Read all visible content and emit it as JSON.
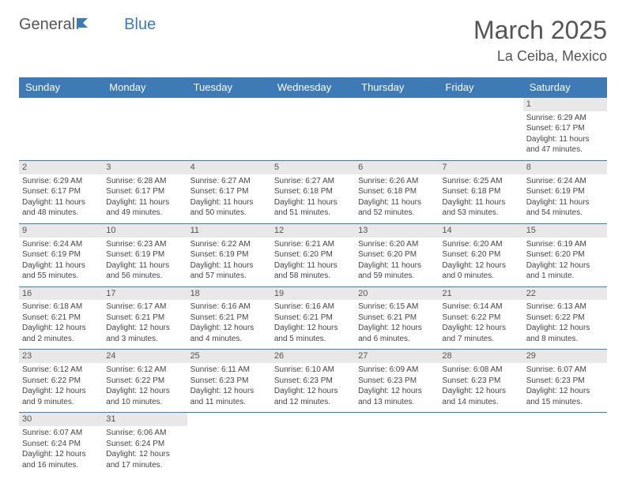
{
  "logo": {
    "general": "General",
    "blue": "Blue"
  },
  "title": {
    "month": "March 2025",
    "location": "La Ceiba, Mexico"
  },
  "days_of_week": [
    "Sunday",
    "Monday",
    "Tuesday",
    "Wednesday",
    "Thursday",
    "Friday",
    "Saturday"
  ],
  "colors": {
    "header_bg": "#3e7ab5",
    "header_text": "#ffffff",
    "daynum_bg": "#e8e8e8",
    "border": "#3e7ab5",
    "text": "#444444"
  },
  "weeks": [
    [
      null,
      null,
      null,
      null,
      null,
      null,
      {
        "n": "1",
        "sunrise": "Sunrise: 6:29 AM",
        "sunset": "Sunset: 6:17 PM",
        "daylight": "Daylight: 11 hours and 47 minutes."
      }
    ],
    [
      {
        "n": "2",
        "sunrise": "Sunrise: 6:29 AM",
        "sunset": "Sunset: 6:17 PM",
        "daylight": "Daylight: 11 hours and 48 minutes."
      },
      {
        "n": "3",
        "sunrise": "Sunrise: 6:28 AM",
        "sunset": "Sunset: 6:17 PM",
        "daylight": "Daylight: 11 hours and 49 minutes."
      },
      {
        "n": "4",
        "sunrise": "Sunrise: 6:27 AM",
        "sunset": "Sunset: 6:17 PM",
        "daylight": "Daylight: 11 hours and 50 minutes."
      },
      {
        "n": "5",
        "sunrise": "Sunrise: 6:27 AM",
        "sunset": "Sunset: 6:18 PM",
        "daylight": "Daylight: 11 hours and 51 minutes."
      },
      {
        "n": "6",
        "sunrise": "Sunrise: 6:26 AM",
        "sunset": "Sunset: 6:18 PM",
        "daylight": "Daylight: 11 hours and 52 minutes."
      },
      {
        "n": "7",
        "sunrise": "Sunrise: 6:25 AM",
        "sunset": "Sunset: 6:18 PM",
        "daylight": "Daylight: 11 hours and 53 minutes."
      },
      {
        "n": "8",
        "sunrise": "Sunrise: 6:24 AM",
        "sunset": "Sunset: 6:19 PM",
        "daylight": "Daylight: 11 hours and 54 minutes."
      }
    ],
    [
      {
        "n": "9",
        "sunrise": "Sunrise: 6:24 AM",
        "sunset": "Sunset: 6:19 PM",
        "daylight": "Daylight: 11 hours and 55 minutes."
      },
      {
        "n": "10",
        "sunrise": "Sunrise: 6:23 AM",
        "sunset": "Sunset: 6:19 PM",
        "daylight": "Daylight: 11 hours and 56 minutes."
      },
      {
        "n": "11",
        "sunrise": "Sunrise: 6:22 AM",
        "sunset": "Sunset: 6:19 PM",
        "daylight": "Daylight: 11 hours and 57 minutes."
      },
      {
        "n": "12",
        "sunrise": "Sunrise: 6:21 AM",
        "sunset": "Sunset: 6:20 PM",
        "daylight": "Daylight: 11 hours and 58 minutes."
      },
      {
        "n": "13",
        "sunrise": "Sunrise: 6:20 AM",
        "sunset": "Sunset: 6:20 PM",
        "daylight": "Daylight: 11 hours and 59 minutes."
      },
      {
        "n": "14",
        "sunrise": "Sunrise: 6:20 AM",
        "sunset": "Sunset: 6:20 PM",
        "daylight": "Daylight: 12 hours and 0 minutes."
      },
      {
        "n": "15",
        "sunrise": "Sunrise: 6:19 AM",
        "sunset": "Sunset: 6:20 PM",
        "daylight": "Daylight: 12 hours and 1 minute."
      }
    ],
    [
      {
        "n": "16",
        "sunrise": "Sunrise: 6:18 AM",
        "sunset": "Sunset: 6:21 PM",
        "daylight": "Daylight: 12 hours and 2 minutes."
      },
      {
        "n": "17",
        "sunrise": "Sunrise: 6:17 AM",
        "sunset": "Sunset: 6:21 PM",
        "daylight": "Daylight: 12 hours and 3 minutes."
      },
      {
        "n": "18",
        "sunrise": "Sunrise: 6:16 AM",
        "sunset": "Sunset: 6:21 PM",
        "daylight": "Daylight: 12 hours and 4 minutes."
      },
      {
        "n": "19",
        "sunrise": "Sunrise: 6:16 AM",
        "sunset": "Sunset: 6:21 PM",
        "daylight": "Daylight: 12 hours and 5 minutes."
      },
      {
        "n": "20",
        "sunrise": "Sunrise: 6:15 AM",
        "sunset": "Sunset: 6:21 PM",
        "daylight": "Daylight: 12 hours and 6 minutes."
      },
      {
        "n": "21",
        "sunrise": "Sunrise: 6:14 AM",
        "sunset": "Sunset: 6:22 PM",
        "daylight": "Daylight: 12 hours and 7 minutes."
      },
      {
        "n": "22",
        "sunrise": "Sunrise: 6:13 AM",
        "sunset": "Sunset: 6:22 PM",
        "daylight": "Daylight: 12 hours and 8 minutes."
      }
    ],
    [
      {
        "n": "23",
        "sunrise": "Sunrise: 6:12 AM",
        "sunset": "Sunset: 6:22 PM",
        "daylight": "Daylight: 12 hours and 9 minutes."
      },
      {
        "n": "24",
        "sunrise": "Sunrise: 6:12 AM",
        "sunset": "Sunset: 6:22 PM",
        "daylight": "Daylight: 12 hours and 10 minutes."
      },
      {
        "n": "25",
        "sunrise": "Sunrise: 6:11 AM",
        "sunset": "Sunset: 6:23 PM",
        "daylight": "Daylight: 12 hours and 11 minutes."
      },
      {
        "n": "26",
        "sunrise": "Sunrise: 6:10 AM",
        "sunset": "Sunset: 6:23 PM",
        "daylight": "Daylight: 12 hours and 12 minutes."
      },
      {
        "n": "27",
        "sunrise": "Sunrise: 6:09 AM",
        "sunset": "Sunset: 6:23 PM",
        "daylight": "Daylight: 12 hours and 13 minutes."
      },
      {
        "n": "28",
        "sunrise": "Sunrise: 6:08 AM",
        "sunset": "Sunset: 6:23 PM",
        "daylight": "Daylight: 12 hours and 14 minutes."
      },
      {
        "n": "29",
        "sunrise": "Sunrise: 6:07 AM",
        "sunset": "Sunset: 6:23 PM",
        "daylight": "Daylight: 12 hours and 15 minutes."
      }
    ],
    [
      {
        "n": "30",
        "sunrise": "Sunrise: 6:07 AM",
        "sunset": "Sunset: 6:24 PM",
        "daylight": "Daylight: 12 hours and 16 minutes."
      },
      {
        "n": "31",
        "sunrise": "Sunrise: 6:06 AM",
        "sunset": "Sunset: 6:24 PM",
        "daylight": "Daylight: 12 hours and 17 minutes."
      },
      null,
      null,
      null,
      null,
      null
    ]
  ]
}
